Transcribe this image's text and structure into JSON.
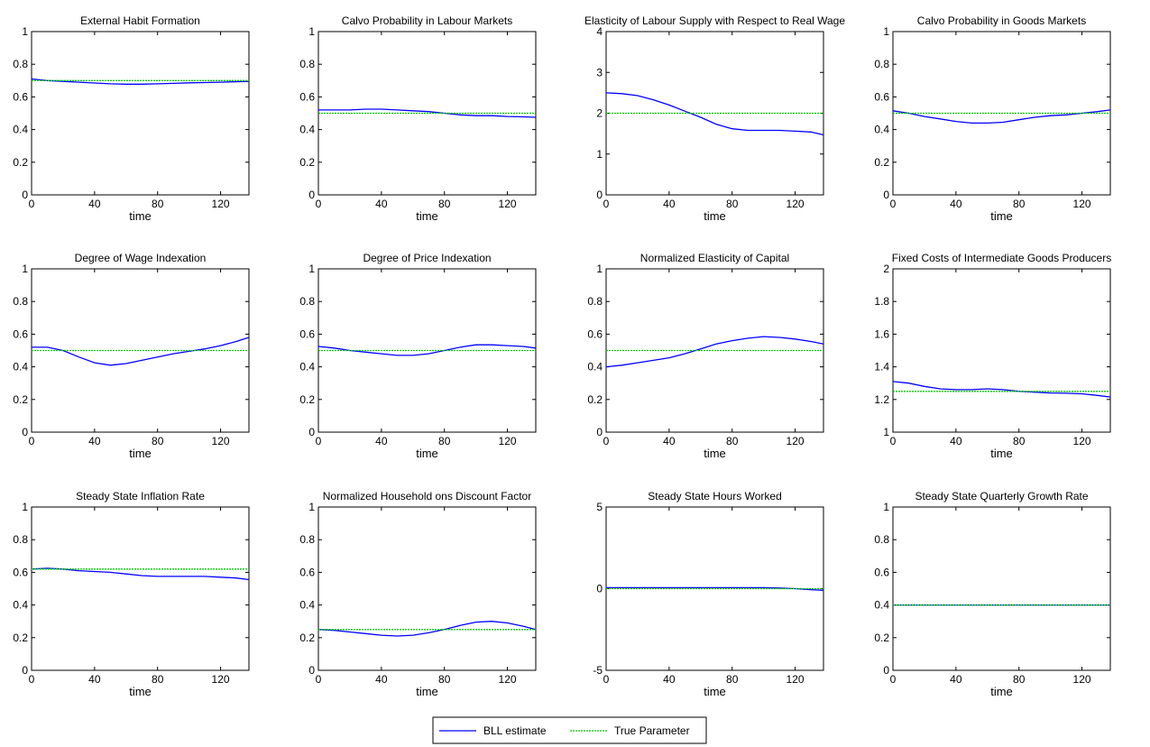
{
  "colors": {
    "estimate": "#0000ff",
    "true_parameter": "#00cc00",
    "axes": "#000000",
    "background": "#ffffff"
  },
  "legend": {
    "placement": "bottom-center",
    "entries": [
      "BLL estimate",
      "True Parameter"
    ]
  },
  "chart_data": [
    {
      "type": "line",
      "title": "External Habit Formation",
      "xlabel": "time",
      "ylabel": "",
      "xlim": [
        0,
        138
      ],
      "ylim": [
        0,
        1
      ],
      "xticks": [
        0,
        40,
        80,
        120
      ],
      "yticks": [
        0,
        0.2,
        0.4,
        0.6,
        0.8,
        1
      ],
      "grid": false,
      "series": [
        {
          "name": "BLL estimate",
          "x": [
            0,
            10,
            20,
            30,
            40,
            50,
            60,
            70,
            80,
            90,
            100,
            110,
            120,
            130,
            138
          ],
          "y": [
            0.71,
            0.7,
            0.695,
            0.69,
            0.685,
            0.68,
            0.678,
            0.678,
            0.68,
            0.683,
            0.686,
            0.688,
            0.69,
            0.693,
            0.695
          ]
        },
        {
          "name": "True Parameter",
          "x": [
            0,
            138
          ],
          "y": [
            0.7,
            0.7
          ]
        }
      ]
    },
    {
      "type": "line",
      "title": "Calvo Probability in Labour Markets",
      "xlabel": "time",
      "ylabel": "",
      "xlim": [
        0,
        138
      ],
      "ylim": [
        0,
        1
      ],
      "xticks": [
        0,
        40,
        80,
        120
      ],
      "yticks": [
        0,
        0.2,
        0.4,
        0.6,
        0.8,
        1
      ],
      "grid": false,
      "series": [
        {
          "name": "BLL estimate",
          "x": [
            0,
            10,
            20,
            30,
            40,
            50,
            60,
            70,
            80,
            90,
            100,
            110,
            120,
            130,
            138
          ],
          "y": [
            0.52,
            0.52,
            0.52,
            0.525,
            0.525,
            0.52,
            0.515,
            0.51,
            0.5,
            0.49,
            0.485,
            0.485,
            0.48,
            0.478,
            0.475
          ]
        },
        {
          "name": "True Parameter",
          "x": [
            0,
            138
          ],
          "y": [
            0.5,
            0.5
          ]
        }
      ]
    },
    {
      "type": "line",
      "title": "Elasticity of Labour Supply with Respect to Real Wage",
      "xlabel": "time",
      "ylabel": "",
      "xlim": [
        0,
        138
      ],
      "ylim": [
        0,
        4
      ],
      "xticks": [
        0,
        40,
        80,
        120
      ],
      "yticks": [
        0,
        1,
        2,
        3,
        4
      ],
      "grid": false,
      "series": [
        {
          "name": "BLL estimate",
          "x": [
            0,
            10,
            20,
            30,
            40,
            50,
            60,
            70,
            80,
            90,
            100,
            110,
            120,
            130,
            138
          ],
          "y": [
            2.5,
            2.48,
            2.43,
            2.33,
            2.2,
            2.05,
            1.9,
            1.73,
            1.62,
            1.58,
            1.58,
            1.58,
            1.56,
            1.54,
            1.47
          ]
        },
        {
          "name": "True Parameter",
          "x": [
            0,
            138
          ],
          "y": [
            2,
            2
          ]
        }
      ]
    },
    {
      "type": "line",
      "title": "Calvo Probability in Goods Markets",
      "xlabel": "time",
      "ylabel": "",
      "xlim": [
        0,
        138
      ],
      "ylim": [
        0,
        1
      ],
      "xticks": [
        0,
        40,
        80,
        120
      ],
      "yticks": [
        0,
        0.2,
        0.4,
        0.6,
        0.8,
        1
      ],
      "grid": false,
      "series": [
        {
          "name": "BLL estimate",
          "x": [
            0,
            10,
            20,
            30,
            40,
            50,
            60,
            70,
            80,
            90,
            100,
            110,
            120,
            130,
            138
          ],
          "y": [
            0.515,
            0.5,
            0.48,
            0.465,
            0.45,
            0.44,
            0.44,
            0.445,
            0.46,
            0.475,
            0.485,
            0.49,
            0.5,
            0.51,
            0.52
          ]
        },
        {
          "name": "True Parameter",
          "x": [
            0,
            138
          ],
          "y": [
            0.5,
            0.5
          ]
        }
      ]
    },
    {
      "type": "line",
      "title": "Degree of Wage Indexation",
      "xlabel": "time",
      "ylabel": "",
      "xlim": [
        0,
        138
      ],
      "ylim": [
        0,
        1
      ],
      "xticks": [
        0,
        40,
        80,
        120
      ],
      "yticks": [
        0,
        0.2,
        0.4,
        0.6,
        0.8,
        1
      ],
      "grid": false,
      "series": [
        {
          "name": "BLL estimate",
          "x": [
            0,
            10,
            20,
            30,
            40,
            50,
            60,
            70,
            80,
            90,
            100,
            110,
            120,
            130,
            138
          ],
          "y": [
            0.52,
            0.52,
            0.5,
            0.46,
            0.425,
            0.41,
            0.42,
            0.44,
            0.46,
            0.48,
            0.495,
            0.51,
            0.53,
            0.555,
            0.58
          ]
        },
        {
          "name": "True Parameter",
          "x": [
            0,
            138
          ],
          "y": [
            0.5,
            0.5
          ]
        }
      ]
    },
    {
      "type": "line",
      "title": "Degree of Price Indexation",
      "xlabel": "time",
      "ylabel": "",
      "xlim": [
        0,
        138
      ],
      "ylim": [
        0,
        1
      ],
      "xticks": [
        0,
        40,
        80,
        120
      ],
      "yticks": [
        0,
        0.2,
        0.4,
        0.6,
        0.8,
        1
      ],
      "grid": false,
      "series": [
        {
          "name": "BLL estimate",
          "x": [
            0,
            10,
            20,
            30,
            40,
            50,
            60,
            70,
            80,
            90,
            100,
            110,
            120,
            130,
            138
          ],
          "y": [
            0.525,
            0.515,
            0.5,
            0.49,
            0.48,
            0.47,
            0.47,
            0.48,
            0.5,
            0.52,
            0.535,
            0.535,
            0.53,
            0.525,
            0.515
          ]
        },
        {
          "name": "True Parameter",
          "x": [
            0,
            138
          ],
          "y": [
            0.5,
            0.5
          ]
        }
      ]
    },
    {
      "type": "line",
      "title": "Normalized Elasticity of Capital",
      "xlabel": "time",
      "ylabel": "",
      "xlim": [
        0,
        138
      ],
      "ylim": [
        0,
        1
      ],
      "xticks": [
        0,
        40,
        80,
        120
      ],
      "yticks": [
        0,
        0.2,
        0.4,
        0.6,
        0.8,
        1
      ],
      "grid": false,
      "series": [
        {
          "name": "BLL estimate",
          "x": [
            0,
            10,
            20,
            30,
            40,
            50,
            60,
            70,
            80,
            90,
            100,
            110,
            120,
            130,
            138
          ],
          "y": [
            0.4,
            0.41,
            0.425,
            0.44,
            0.455,
            0.48,
            0.51,
            0.54,
            0.56,
            0.575,
            0.585,
            0.58,
            0.57,
            0.555,
            0.54
          ]
        },
        {
          "name": "True Parameter",
          "x": [
            0,
            138
          ],
          "y": [
            0.5,
            0.5
          ]
        }
      ]
    },
    {
      "type": "line",
      "title": "Fixed Costs of Intermediate Goods Producers",
      "xlabel": "time",
      "ylabel": "",
      "xlim": [
        0,
        138
      ],
      "ylim": [
        1,
        2
      ],
      "xticks": [
        0,
        40,
        80,
        120
      ],
      "yticks": [
        1,
        1.2,
        1.4,
        1.6,
        1.8,
        2
      ],
      "grid": false,
      "series": [
        {
          "name": "BLL estimate",
          "x": [
            0,
            10,
            20,
            30,
            40,
            50,
            60,
            70,
            80,
            90,
            100,
            110,
            120,
            130,
            138
          ],
          "y": [
            1.31,
            1.3,
            1.28,
            1.265,
            1.26,
            1.26,
            1.265,
            1.26,
            1.25,
            1.245,
            1.24,
            1.238,
            1.235,
            1.225,
            1.215
          ]
        },
        {
          "name": "True Parameter",
          "x": [
            0,
            138
          ],
          "y": [
            1.25,
            1.25
          ]
        }
      ]
    },
    {
      "type": "line",
      "title": "Steady State Inflation Rate",
      "xlabel": "time",
      "ylabel": "",
      "xlim": [
        0,
        138
      ],
      "ylim": [
        0,
        1
      ],
      "xticks": [
        0,
        40,
        80,
        120
      ],
      "yticks": [
        0,
        0.2,
        0.4,
        0.6,
        0.8,
        1
      ],
      "grid": false,
      "series": [
        {
          "name": "BLL estimate",
          "x": [
            0,
            10,
            20,
            30,
            40,
            50,
            60,
            70,
            80,
            90,
            100,
            110,
            120,
            130,
            138
          ],
          "y": [
            0.62,
            0.625,
            0.62,
            0.61,
            0.605,
            0.6,
            0.59,
            0.58,
            0.575,
            0.575,
            0.575,
            0.575,
            0.57,
            0.565,
            0.555
          ]
        },
        {
          "name": "True Parameter",
          "x": [
            0,
            138
          ],
          "y": [
            0.62,
            0.62
          ]
        }
      ]
    },
    {
      "type": "line",
      "title": "Normalized Household ons Discount Factor",
      "xlabel": "time",
      "ylabel": "",
      "xlim": [
        0,
        138
      ],
      "ylim": [
        0,
        1
      ],
      "xticks": [
        0,
        40,
        80,
        120
      ],
      "yticks": [
        0,
        0.2,
        0.4,
        0.6,
        0.8,
        1
      ],
      "grid": false,
      "series": [
        {
          "name": "BLL estimate",
          "x": [
            0,
            10,
            20,
            30,
            40,
            50,
            60,
            70,
            80,
            90,
            100,
            110,
            120,
            130,
            138
          ],
          "y": [
            0.25,
            0.245,
            0.235,
            0.225,
            0.215,
            0.21,
            0.215,
            0.23,
            0.25,
            0.275,
            0.295,
            0.3,
            0.29,
            0.27,
            0.25
          ]
        },
        {
          "name": "True Parameter",
          "x": [
            0,
            138
          ],
          "y": [
            0.25,
            0.25
          ]
        }
      ]
    },
    {
      "type": "line",
      "title": "Steady State Hours Worked",
      "xlabel": "time",
      "ylabel": "",
      "xlim": [
        0,
        138
      ],
      "ylim": [
        -5,
        5
      ],
      "xticks": [
        0,
        40,
        80,
        120
      ],
      "yticks": [
        -5,
        0,
        5
      ],
      "grid": false,
      "series": [
        {
          "name": "BLL estimate",
          "x": [
            0,
            20,
            40,
            60,
            80,
            100,
            110,
            120,
            130,
            138
          ],
          "y": [
            0.06,
            0.06,
            0.06,
            0.06,
            0.06,
            0.06,
            0.04,
            0.0,
            -0.06,
            -0.1
          ]
        },
        {
          "name": "True Parameter",
          "x": [
            0,
            138
          ],
          "y": [
            0,
            0
          ]
        }
      ]
    },
    {
      "type": "line",
      "title": "Steady State Quarterly Growth Rate",
      "xlabel": "time",
      "ylabel": "",
      "xlim": [
        0,
        138
      ],
      "ylim": [
        0,
        1
      ],
      "xticks": [
        0,
        40,
        80,
        120
      ],
      "yticks": [
        0,
        0.2,
        0.4,
        0.6,
        0.8,
        1
      ],
      "grid": false,
      "series": [
        {
          "name": "BLL estimate",
          "x": [
            0,
            138
          ],
          "y": [
            0.4,
            0.4
          ]
        },
        {
          "name": "True Parameter",
          "x": [
            0,
            138
          ],
          "y": [
            0.4,
            0.4
          ]
        }
      ]
    }
  ]
}
